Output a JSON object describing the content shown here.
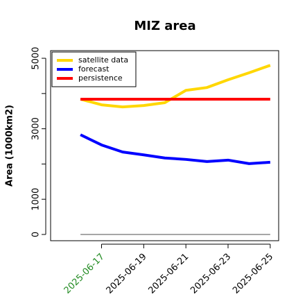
{
  "chart_data": {
    "type": "line",
    "title": "MIZ area",
    "ylabel": "Area (1000km2)",
    "x": [
      "2025-06-16",
      "2025-06-17",
      "2025-06-18",
      "2025-06-19",
      "2025-06-20",
      "2025-06-21",
      "2025-06-22",
      "2025-06-23",
      "2025-06-24",
      "2025-06-25"
    ],
    "series": [
      {
        "name": "satellite data",
        "color": "#ffd700",
        "values": [
          3840,
          3680,
          3620,
          3660,
          3740,
          4090,
          4170,
          4390,
          4590,
          4800
        ]
      },
      {
        "name": "forecast",
        "color": "#0000ff",
        "values": [
          2830,
          2540,
          2340,
          2260,
          2170,
          2130,
          2070,
          2110,
          2010,
          2050
        ]
      },
      {
        "name": "persistence",
        "color": "#ff0000",
        "values": [
          3840,
          3840,
          3840,
          3840,
          3840,
          3840,
          3840,
          3840,
          3840,
          3840
        ]
      }
    ],
    "reference_line": {
      "value": 0,
      "color": "#888888"
    },
    "xlim": [
      "2025-06-14T14:00",
      "2025-06-25T09:36"
    ],
    "xticks": [
      "2025-06-17",
      "2025-06-19",
      "2025-06-21",
      "2025-06-23",
      "2025-06-25"
    ],
    "xtick_highlight": {
      "index": 0,
      "color": "#228b22"
    },
    "ylim": [
      -177,
      5217
    ],
    "yticks": [
      0,
      1000,
      3000,
      5000
    ],
    "yticks_unlabeled": [
      2000,
      4000
    ],
    "legend": "top-left"
  }
}
